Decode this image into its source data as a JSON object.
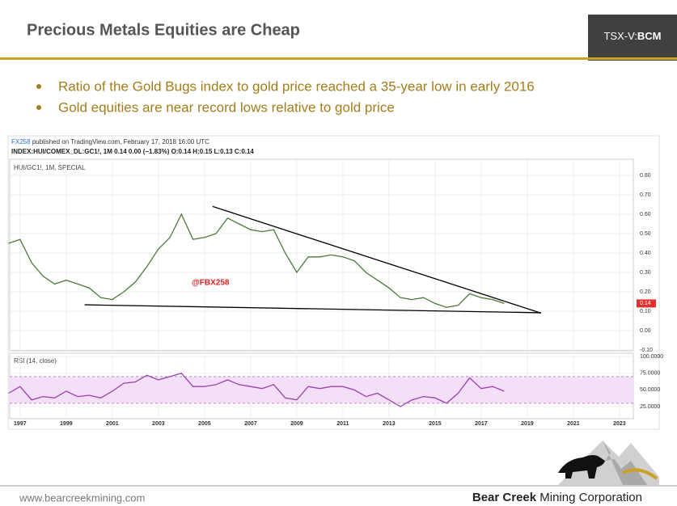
{
  "header": {
    "title": "Precious Metals Equities are Cheap",
    "ticker_prefix": "TSX-V:",
    "ticker": "BCM"
  },
  "bullets": [
    "Ratio of the Gold Bugs index to gold price reached a 35-year low in early 2016",
    "Gold equities are near record lows relative to gold price"
  ],
  "chart_data": [
    {
      "type": "line",
      "publisher": "FX258",
      "published": "published on TradingView.com, February 17, 2018 16:00 UTC",
      "symbol_info": "INDEX:HUI/COMEX_DL:GC1!, 1M 0.14 0.00 (−1.83%) O:0.14 H:0.15 L:0.13 C:0.14",
      "title": "HUI/GC1!, 1M, SPECIAL",
      "watermark": "@FBX258",
      "color": "#4a7a3a",
      "x": [
        1996.5,
        1997,
        1997.5,
        1998,
        1998.5,
        1999,
        1999.5,
        2000,
        2000.5,
        2001,
        2001.5,
        2002,
        2002.5,
        2003,
        2003.5,
        2004,
        2004.5,
        2005,
        2005.5,
        2006,
        2006.5,
        2007,
        2007.5,
        2008,
        2008.5,
        2009,
        2009.5,
        2010,
        2010.5,
        2011,
        2011.5,
        2012,
        2012.5,
        2013,
        2013.5,
        2014,
        2014.5,
        2015,
        2015.5,
        2016,
        2016.5,
        2017,
        2017.5,
        2018
      ],
      "values": [
        0.45,
        0.47,
        0.35,
        0.28,
        0.24,
        0.26,
        0.24,
        0.22,
        0.17,
        0.16,
        0.2,
        0.25,
        0.33,
        0.42,
        0.48,
        0.6,
        0.47,
        0.48,
        0.5,
        0.58,
        0.55,
        0.52,
        0.51,
        0.52,
        0.4,
        0.3,
        0.38,
        0.38,
        0.39,
        0.38,
        0.36,
        0.3,
        0.26,
        0.22,
        0.17,
        0.16,
        0.17,
        0.14,
        0.12,
        0.13,
        0.19,
        0.17,
        0.16,
        0.14
      ],
      "trendlines": [
        {
          "x": [
            2005.35,
            2019.6
          ],
          "values": [
            0.64,
            0.09
          ]
        },
        {
          "x": [
            1999.8,
            2019.6
          ],
          "values": [
            0.133,
            0.092
          ]
        }
      ],
      "xlim": [
        1996.55,
        2023.6
      ],
      "ylim": [
        -0.1,
        0.88
      ],
      "yticks": [
        {
          "value": 0.8,
          "label": "0.80"
        },
        {
          "value": 0.7,
          "label": "0.70"
        },
        {
          "value": 0.6,
          "label": "0.60"
        },
        {
          "value": 0.5,
          "label": "0.50"
        },
        {
          "value": 0.4,
          "label": "0.40"
        },
        {
          "value": 0.3,
          "label": "0.30"
        },
        {
          "value": 0.2,
          "label": "0.20"
        },
        {
          "value": 0.1,
          "label": "0.10"
        },
        {
          "value": 0,
          "label": "0.00"
        },
        {
          "value": -0.1,
          "label": "-0.10"
        }
      ]
    },
    {
      "type": "line",
      "title": "RSI (14, close)",
      "color": "#9b3fb0",
      "band": [
        30,
        70
      ],
      "x": [
        1996.5,
        1997,
        1997.5,
        1998,
        1998.5,
        1999,
        1999.5,
        2000,
        2000.5,
        2001,
        2001.5,
        2002,
        2002.5,
        2003,
        2003.5,
        2004,
        2004.5,
        2005,
        2005.5,
        2006,
        2006.5,
        2007,
        2007.5,
        2008,
        2008.5,
        2009,
        2009.5,
        2010,
        2010.5,
        2011,
        2011.5,
        2012,
        2012.5,
        2013,
        2013.5,
        2014,
        2014.5,
        2015,
        2015.5,
        2016,
        2016.5,
        2017,
        2017.5,
        2018
      ],
      "values": [
        45,
        55,
        35,
        40,
        38,
        48,
        40,
        42,
        38,
        48,
        60,
        62,
        72,
        65,
        70,
        75,
        55,
        55,
        58,
        65,
        58,
        55,
        52,
        58,
        38,
        35,
        55,
        52,
        55,
        55,
        50,
        40,
        45,
        35,
        25,
        35,
        40,
        38,
        30,
        45,
        68,
        52,
        55,
        48
      ],
      "xlim": [
        1996.55,
        2023.6
      ],
      "ylim": [
        8,
        105
      ],
      "yticks": [
        {
          "value": 100,
          "label": "100.0000"
        },
        {
          "value": 75,
          "label": "75.0000"
        },
        {
          "value": 50,
          "label": "50.0000"
        },
        {
          "value": 25,
          "label": "25.0000"
        }
      ],
      "xticks": [
        1997,
        1999,
        2001,
        2003,
        2005,
        2007,
        2009,
        2011,
        2013,
        2015,
        2017,
        2019,
        2021,
        2023
      ]
    }
  ],
  "footer": {
    "website": "www.bearcreekmining.com",
    "company_bold": "Bear Creek",
    "company_rest": " Mining Corporation"
  }
}
